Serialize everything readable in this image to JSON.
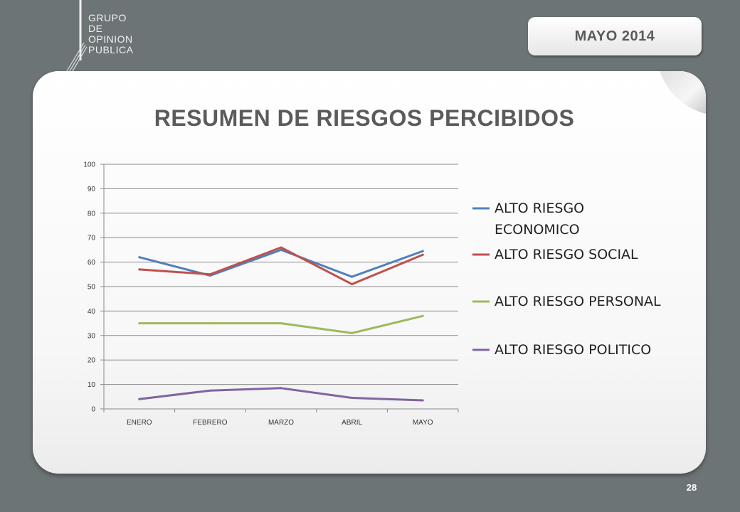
{
  "header": {
    "logo_lines": [
      "GRUPO",
      "DE",
      "OPINION",
      "PUBLICA"
    ],
    "date": "MAYO 2014"
  },
  "footer": {
    "page_number": "28"
  },
  "colors": {
    "background": "#6d7476",
    "card": "#ffffff",
    "title": "#5b5b5b",
    "economico": "#4f81bd",
    "social": "#c0504d",
    "personal": "#9bbb59",
    "politico": "#8064a2"
  },
  "chart_data": {
    "type": "line",
    "title": "RESUMEN DE RIESGOS PERCIBIDOS",
    "categories": [
      "ENERO",
      "FEBRERO",
      "MARZO",
      "ABRIL",
      "MAYO"
    ],
    "ylim": [
      0,
      100
    ],
    "yticks": [
      0,
      10,
      20,
      30,
      40,
      50,
      60,
      70,
      80,
      90,
      100
    ],
    "grid": true,
    "legend_position": "right",
    "series": [
      {
        "name_lines": [
          "ALTO RIESGO",
          "ECONOMICO"
        ],
        "name": "ALTO RIESGO ECONOMICO",
        "color": "#4f81bd",
        "values": [
          62,
          54.5,
          65,
          54,
          64.5
        ]
      },
      {
        "name_lines": [
          "ALTO RIESGO SOCIAL"
        ],
        "name": "ALTO RIESGO SOCIAL",
        "color": "#c0504d",
        "values": [
          57,
          55,
          66,
          51,
          63
        ]
      },
      {
        "name_lines": [
          "ALTO RIESGO PERSONAL"
        ],
        "name": "ALTO RIESGO PERSONAL",
        "color": "#9bbb59",
        "values": [
          35,
          35,
          35,
          31,
          38
        ]
      },
      {
        "name_lines": [
          "ALTO RIESGO POLITICO"
        ],
        "name": "ALTO RIESGO POLITICO",
        "color": "#8064a2",
        "values": [
          4,
          7.5,
          8.5,
          4.5,
          3.5
        ]
      }
    ]
  }
}
